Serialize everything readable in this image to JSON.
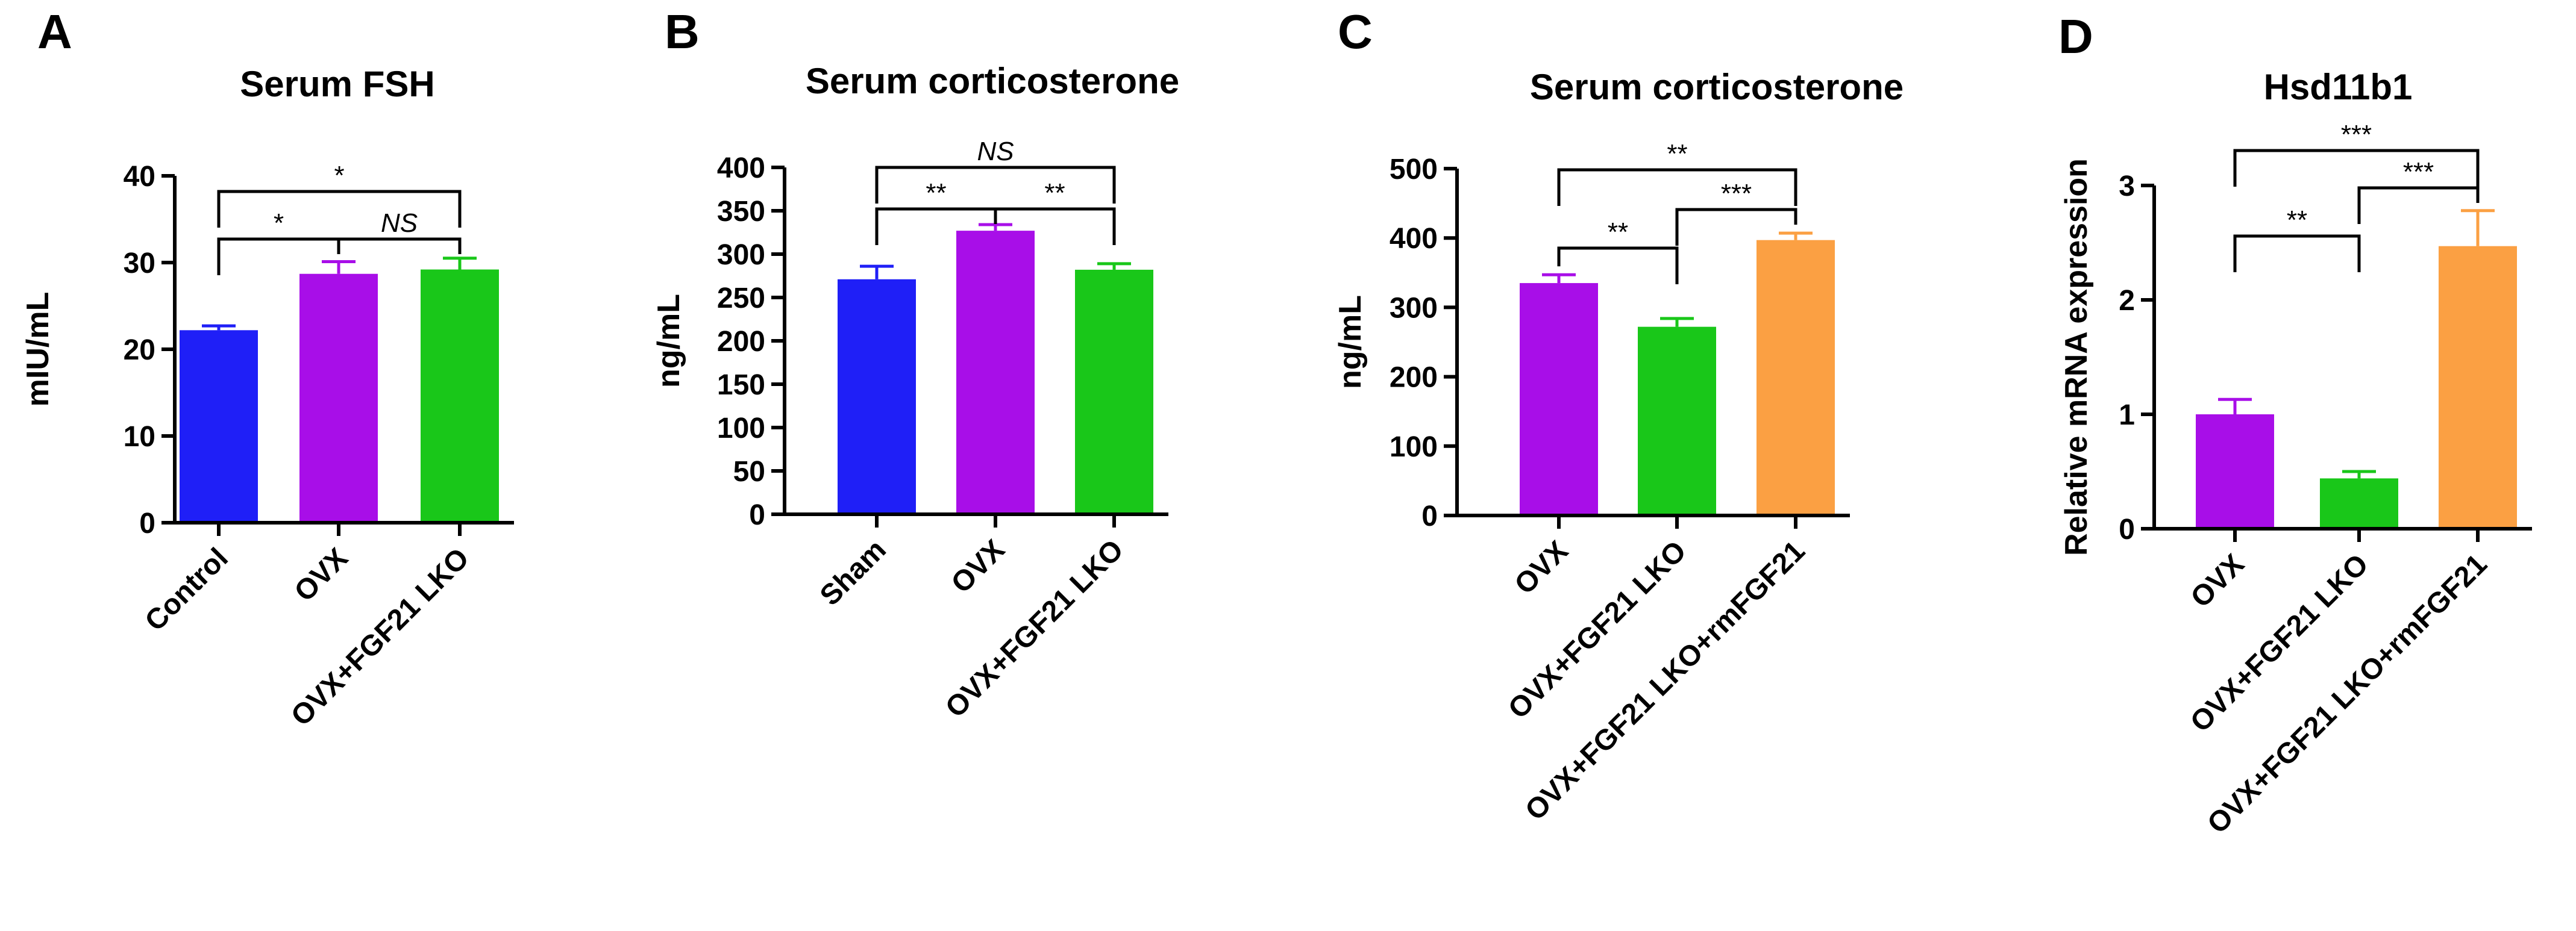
{
  "chart_data": [
    {
      "type": "bar",
      "panel": "A",
      "title": "Serum FSH",
      "ylabel": "mIU/mL",
      "xlabel": "",
      "ylim": [
        0,
        40
      ],
      "yticks": [
        0,
        10,
        20,
        30,
        40
      ],
      "categories": [
        "Control",
        "OVX",
        "OVX+FGF21 LKO"
      ],
      "values": [
        22.2,
        28.7,
        29.2
      ],
      "errors": [
        0.5,
        1.4,
        1.3
      ],
      "colors": [
        "#1f1ff7",
        "#a80ee8",
        "#19c719"
      ],
      "comparisons": [
        {
          "from": 0,
          "to": 2,
          "label": "*"
        },
        {
          "from": 0,
          "to": 1,
          "label": "*"
        },
        {
          "from": 1,
          "to": 2,
          "label": "NS"
        }
      ]
    },
    {
      "type": "bar",
      "panel": "B",
      "title": "Serum corticosterone",
      "ylabel": "ng/mL",
      "xlabel": "",
      "ylim": [
        0,
        400
      ],
      "yticks": [
        0,
        50,
        100,
        150,
        200,
        250,
        300,
        350,
        400
      ],
      "categories": [
        "Sham",
        "OVX",
        "OVX+FGF21 LKO"
      ],
      "values": [
        271,
        327,
        282
      ],
      "errors": [
        15,
        7,
        7
      ],
      "colors": [
        "#1f1ff7",
        "#a80ee8",
        "#19c719"
      ],
      "comparisons": [
        {
          "from": 0,
          "to": 2,
          "label": "NS"
        },
        {
          "from": 0,
          "to": 1,
          "label": "**"
        },
        {
          "from": 1,
          "to": 2,
          "label": "**"
        }
      ]
    },
    {
      "type": "bar",
      "panel": "C",
      "title": "Serum corticosterone",
      "ylabel": "ng/mL",
      "xlabel": "",
      "ylim": [
        0,
        500
      ],
      "yticks": [
        0,
        100,
        200,
        300,
        400,
        500
      ],
      "categories": [
        "OVX",
        "OVX+FGF21 LKO",
        "OVX+FGF21 LKO+rmFGF21"
      ],
      "values": [
        335,
        272,
        397
      ],
      "errors": [
        12,
        12,
        10
      ],
      "colors": [
        "#a80ee8",
        "#19c719",
        "#fba043"
      ],
      "comparisons": [
        {
          "from": 0,
          "to": 2,
          "label": "**"
        },
        {
          "from": 0,
          "to": 1,
          "label": "**"
        },
        {
          "from": 1,
          "to": 2,
          "label": "***"
        }
      ]
    },
    {
      "type": "bar",
      "panel": "D",
      "title": "Hsd11b1",
      "ylabel": "Relative mRNA expression",
      "xlabel": "",
      "ylim": [
        0,
        3
      ],
      "yticks": [
        0,
        1,
        2,
        3
      ],
      "categories": [
        "OVX",
        "OVX+FGF21 LKO",
        "OVX+FGF21 LKO+rmFGF21"
      ],
      "values": [
        1.0,
        0.44,
        2.47
      ],
      "errors": [
        0.13,
        0.06,
        0.31
      ],
      "colors": [
        "#a80ee8",
        "#19c719",
        "#fba043"
      ],
      "comparisons": [
        {
          "from": 0,
          "to": 2,
          "label": "***"
        },
        {
          "from": 0,
          "to": 1,
          "label": "**"
        },
        {
          "from": 1,
          "to": 2,
          "label": "***"
        }
      ]
    }
  ]
}
